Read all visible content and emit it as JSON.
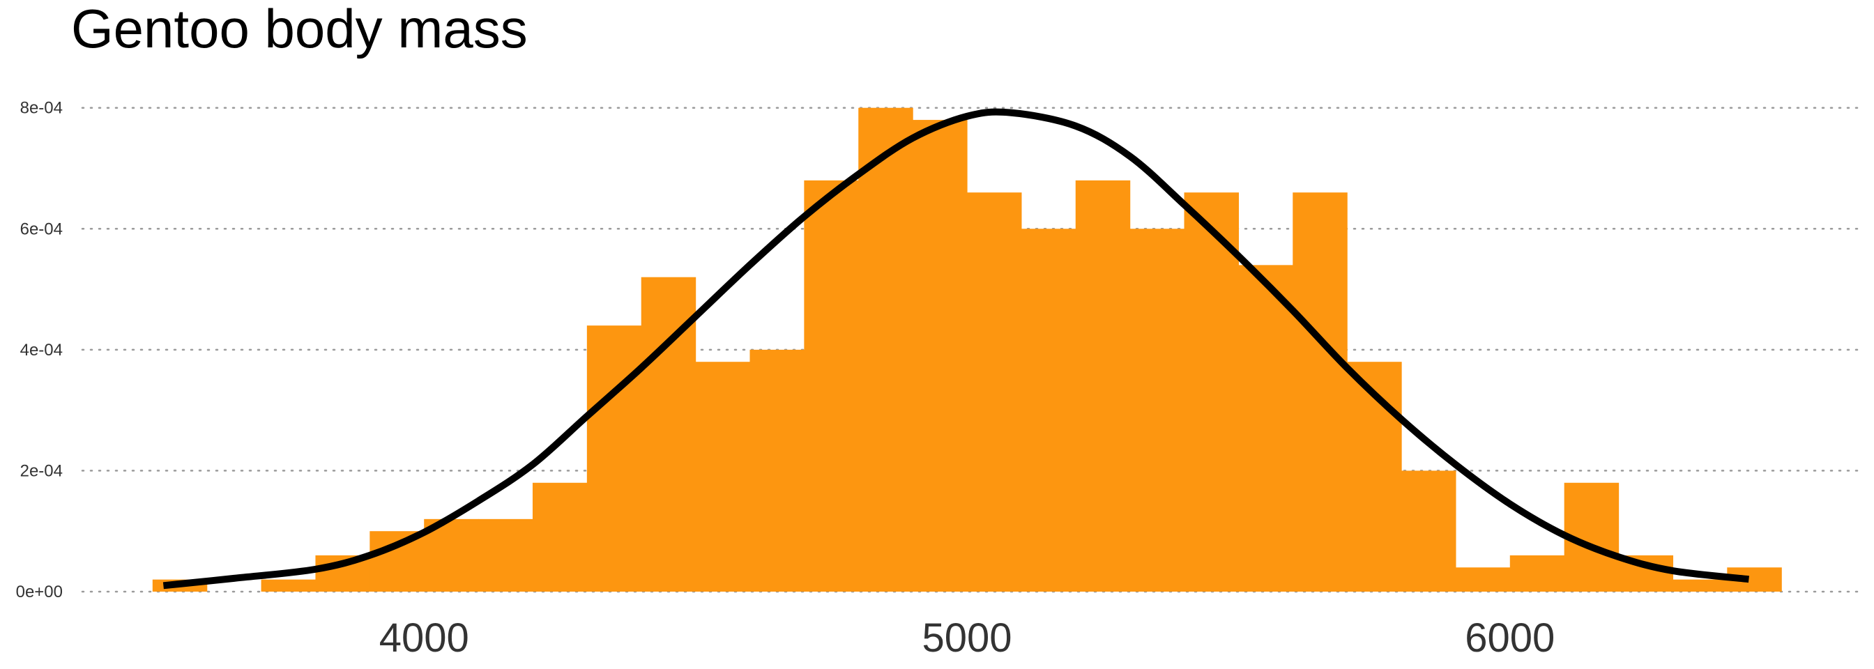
{
  "chart_data": {
    "type": "bar",
    "title": "Gentoo body mass",
    "xlabel": "",
    "ylabel": "",
    "xlim": [
      3350,
      6650
    ],
    "ylim": [
      -1.5e-05,
      0.00084
    ],
    "x_ticks": [
      4000,
      5000,
      6000
    ],
    "x_tick_labels": [
      "4000",
      "5000",
      "6000"
    ],
    "y_ticks": [
      0,
      0.0002,
      0.0004,
      0.0006,
      0.0008
    ],
    "y_tick_labels": [
      "0e+00",
      "2e-04",
      "4e-04",
      "6e-04",
      "8e-04"
    ],
    "grid": "horizontal dotted",
    "bin_width": 100,
    "bins_start": [
      3500,
      3600,
      3700,
      3800,
      3900,
      4000,
      4100,
      4200,
      4300,
      4400,
      4500,
      4600,
      4700,
      4800,
      4900,
      5000,
      5100,
      5200,
      5300,
      5400,
      5500,
      5600,
      5700,
      5800,
      5900,
      6000,
      6100,
      6200,
      6300,
      6400
    ],
    "values": [
      2e-05,
      0,
      2e-05,
      6e-05,
      0.0001,
      0.00012,
      0.00012,
      0.00018,
      0.00044,
      0.00052,
      0.00038,
      0.0004,
      0.00068,
      0.0008,
      0.00078,
      0.00066,
      0.0006,
      0.00068,
      0.0006,
      0.00066,
      0.00054,
      0.00066,
      0.00038,
      0.0002,
      4e-05,
      6e-05,
      0.00018,
      6e-05,
      2e-05,
      4e-05
    ],
    "bar_color": "#FD9610",
    "density_curve": {
      "color": "#000000",
      "x": [
        3520,
        3650,
        3800,
        3900,
        4000,
        4100,
        4200,
        4300,
        4400,
        4500,
        4600,
        4700,
        4800,
        4900,
        5000,
        5080,
        5200,
        5300,
        5400,
        5500,
        5600,
        5700,
        5800,
        5900,
        6000,
        6100,
        6200,
        6300,
        6440
      ],
      "y": [
        1e-05,
        2.2e-05,
        3.7e-05,
        6e-05,
        9.8e-05,
        0.00015,
        0.00021,
        0.00029,
        0.00037,
        0.000455,
        0.00054,
        0.00062,
        0.00069,
        0.00075,
        0.000786,
        0.000792,
        0.00077,
        0.00072,
        0.00064,
        0.000555,
        0.000465,
        0.00037,
        0.000285,
        0.00021,
        0.000145,
        9.35e-05,
        5.75e-05,
        3.45e-05,
        2.05e-05
      ]
    }
  }
}
